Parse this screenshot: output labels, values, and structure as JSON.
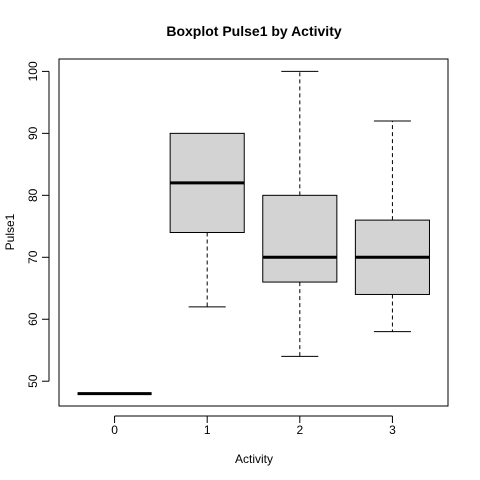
{
  "chart_data": {
    "type": "boxplot",
    "title": "Boxplot Pulse1 by Activity",
    "xlabel": "Activity",
    "ylabel": "Pulse1",
    "categories": [
      "0",
      "1",
      "2",
      "3"
    ],
    "ylim": [
      46,
      102
    ],
    "yticks": [
      50,
      60,
      70,
      80,
      90,
      100
    ],
    "box_fill": "#d3d3d3",
    "boxes": [
      {
        "category": "0",
        "min": 48,
        "q1": 48,
        "median": 48,
        "q3": 48,
        "max": 48
      },
      {
        "category": "1",
        "min": 62,
        "q1": 74,
        "median": 82,
        "q3": 90,
        "max": 90
      },
      {
        "category": "2",
        "min": 54,
        "q1": 66,
        "median": 70,
        "q3": 80,
        "max": 100
      },
      {
        "category": "3",
        "min": 58,
        "q1": 64,
        "median": 70,
        "q3": 76,
        "max": 92
      }
    ]
  }
}
